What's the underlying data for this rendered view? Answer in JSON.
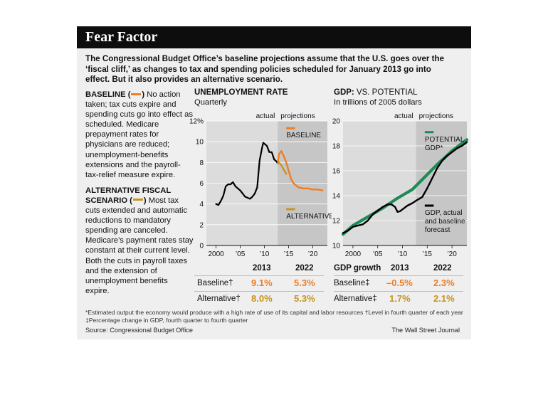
{
  "title": "Fear Factor",
  "intro": "The Congressional Budget Office’s baseline projections assume that the U.S. goes over the ‘fiscal cliff,’ as changes to tax and spending policies scheduled for January 2013 go into effect. But it also provides an alternative scenario.",
  "baseline": {
    "heading": "BASELINE",
    "paren_open": "(",
    "paren_close": ")",
    "text": " No action taken; tax cuts expire and spending cuts go into effect as scheduled. Medicare prepayment rates for physicians are reduced; unemployment-benefits extensions and the payroll-tax-relief measure expire."
  },
  "alternative": {
    "heading": "ALTERNATIVE FISCAL SCENARIO",
    "paren_open": "(",
    "paren_close": ")",
    "text": " Most tax cuts extended and automatic reductions to mandatory spending are canceled. Medicare’s payment rates stay constant at their current level. Both the cuts in payroll taxes and the extension of unemployment benefits expire."
  },
  "colors": {
    "baseline": "#f07d22",
    "alternative": "#c8941c",
    "potential": "#1e8a57",
    "actual": "#000000",
    "projection_shade": "#c6c6c6",
    "plot_bg": "#dcdcdc"
  },
  "unemployment": {
    "title": "UNEMPLOYMENT RATE",
    "subtitle": "Quarterly",
    "actual_label": "actual",
    "projections_label": "projections",
    "baseline_label": "BASELINE",
    "alternative_label": "ALTERNATIVE",
    "y_ticks": [
      "12%",
      "10",
      "8",
      "6",
      "4",
      "2",
      "0"
    ],
    "x_ticks": [
      "2000",
      "’05",
      "’10",
      "’15",
      "’20"
    ]
  },
  "gdp": {
    "title_bold": "GDP:",
    "title_rest": " VS. POTENTIAL",
    "subtitle": "In trillions of 2005 dollars",
    "actual_label": "actual",
    "projections_label": "projections",
    "potential_label_1": "POTENTIAL",
    "potential_label_2": "GDP*",
    "gdp_label_1": "GDP, actual",
    "gdp_label_2": "and baseline",
    "gdp_label_3": "forecast",
    "y_ticks": [
      "20",
      "18",
      "16",
      "14",
      "12",
      "10"
    ],
    "x_ticks": [
      "2000",
      "’05",
      "’10",
      "’15",
      "’20"
    ]
  },
  "chart_data": [
    {
      "type": "line",
      "title": "UNEMPLOYMENT RATE",
      "subtitle": "Quarterly",
      "xlim": [
        1998,
        2023
      ],
      "ylim": [
        0,
        12
      ],
      "projection_start": 2012.75,
      "series": [
        {
          "name": "actual",
          "x": [
            2000,
            2000.5,
            2001,
            2001.5,
            2002,
            2002.5,
            2003,
            2003.5,
            2004,
            2004.5,
            2005,
            2005.5,
            2006,
            2006.5,
            2007,
            2007.5,
            2008,
            2008.5,
            2009,
            2009.5,
            2009.75,
            2010,
            2010.5,
            2011,
            2011.5,
            2012,
            2012.5,
            2012.75
          ],
          "y": [
            4.0,
            3.9,
            4.3,
            4.8,
            5.7,
            5.9,
            5.9,
            6.1,
            5.7,
            5.5,
            5.3,
            5.0,
            4.7,
            4.6,
            4.5,
            4.7,
            5.0,
            5.6,
            8.2,
            9.4,
            9.9,
            9.8,
            9.6,
            9.0,
            9.0,
            8.3,
            8.1,
            7.9
          ]
        },
        {
          "name": "BASELINE",
          "x": [
            2012.75,
            2013,
            2013.5,
            2014,
            2014.5,
            2015,
            2015.5,
            2016,
            2016.5,
            2017,
            2018,
            2019,
            2020,
            2021,
            2022
          ],
          "y": [
            7.9,
            8.8,
            9.1,
            8.6,
            8.0,
            7.2,
            6.4,
            6.0,
            5.8,
            5.6,
            5.5,
            5.5,
            5.4,
            5.4,
            5.3
          ]
        },
        {
          "name": "ALTERNATIVE",
          "x": [
            2012.75,
            2013,
            2013.5,
            2014,
            2014.5
          ],
          "y": [
            7.9,
            8.0,
            7.7,
            7.3,
            6.9
          ]
        }
      ]
    },
    {
      "type": "line",
      "title": "GDP: VS. POTENTIAL",
      "subtitle": "In trillions of 2005 dollars",
      "xlim": [
        1998,
        2023
      ],
      "ylim": [
        10,
        20
      ],
      "projection_start": 2012.75,
      "series": [
        {
          "name": "POTENTIAL GDP*",
          "x": [
            1998,
            2000,
            2003,
            2006,
            2009,
            2012,
            2014,
            2017,
            2020,
            2023
          ],
          "y": [
            10.9,
            11.6,
            12.3,
            13.0,
            13.8,
            14.5,
            15.3,
            16.5,
            17.6,
            18.5
          ]
        },
        {
          "name": "GDP, actual and baseline forecast",
          "x": [
            1998,
            1999,
            2000,
            2001,
            2002,
            2003,
            2004,
            2005,
            2006,
            2007,
            2007.75,
            2008.5,
            2009,
            2009.5,
            2010,
            2011,
            2012,
            2012.75,
            2014,
            2015,
            2016,
            2017,
            2018,
            2019,
            2020,
            2021,
            2022,
            2023
          ],
          "y": [
            11.0,
            11.2,
            11.5,
            11.6,
            11.7,
            12.0,
            12.5,
            12.8,
            13.1,
            13.3,
            13.3,
            13.1,
            12.7,
            12.75,
            12.9,
            13.2,
            13.4,
            13.6,
            13.9,
            14.6,
            15.4,
            16.2,
            16.8,
            17.2,
            17.5,
            17.8,
            18.0,
            18.3
          ]
        }
      ]
    },
    {
      "type": "table",
      "columns": [
        "",
        "2013",
        "2022"
      ],
      "rows": [
        {
          "label": "Baseline†",
          "values": [
            "9.1%",
            "5.3%"
          ]
        },
        {
          "label": "Alternative†",
          "values": [
            "8.0%",
            "5.3%"
          ]
        }
      ]
    },
    {
      "type": "table",
      "columns": [
        "GDP growth",
        "2013",
        "2022"
      ],
      "rows": [
        {
          "label": "Baseline‡",
          "values": [
            "–0.5%",
            "2.3%"
          ]
        },
        {
          "label": "Alternative‡",
          "values": [
            "1.7%",
            "2.1%"
          ]
        }
      ]
    }
  ],
  "tables": {
    "unemployment": {
      "col_2013": "2013",
      "col_2022": "2022",
      "baseline_label": "Baseline†",
      "baseline_2013": "9.1%",
      "baseline_2022": "5.3%",
      "alternative_label": "Alternative†",
      "alternative_2013": "8.0%",
      "alternative_2022": "5.3%"
    },
    "gdp": {
      "header": "GDP growth",
      "col_2013": "2013",
      "col_2022": "2022",
      "baseline_label": "Baseline‡",
      "baseline_2013": "–0.5%",
      "baseline_2022": "2.3%",
      "alternative_label": "Alternative‡",
      "alternative_2013": "1.7%",
      "alternative_2022": "2.1%"
    }
  },
  "notes": {
    "line1": "*Estimated output the economy would produce with a high rate of use of its capital and labor resources    †Level in fourth quarter of each year",
    "line2": "‡Percentage change in GDP, fourth quarter to fourth quarter"
  },
  "source": "Source: Congressional Budget Office",
  "credit": "The Wall Street Journal"
}
